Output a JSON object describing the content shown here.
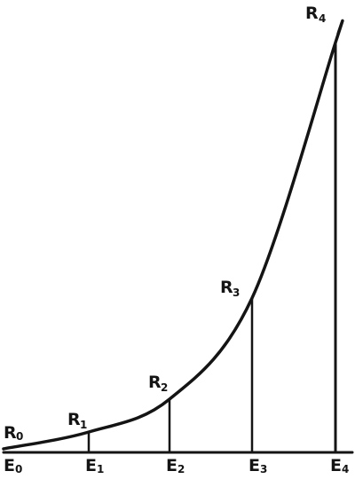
{
  "figure": {
    "curve_label": "R",
    "axis_label": "E",
    "points": [
      {
        "index": "0"
      },
      {
        "index": "1"
      },
      {
        "index": "2"
      },
      {
        "index": "3"
      },
      {
        "index": "4"
      }
    ]
  },
  "colors": {
    "ink": "#141414",
    "background": "#ffffff"
  }
}
